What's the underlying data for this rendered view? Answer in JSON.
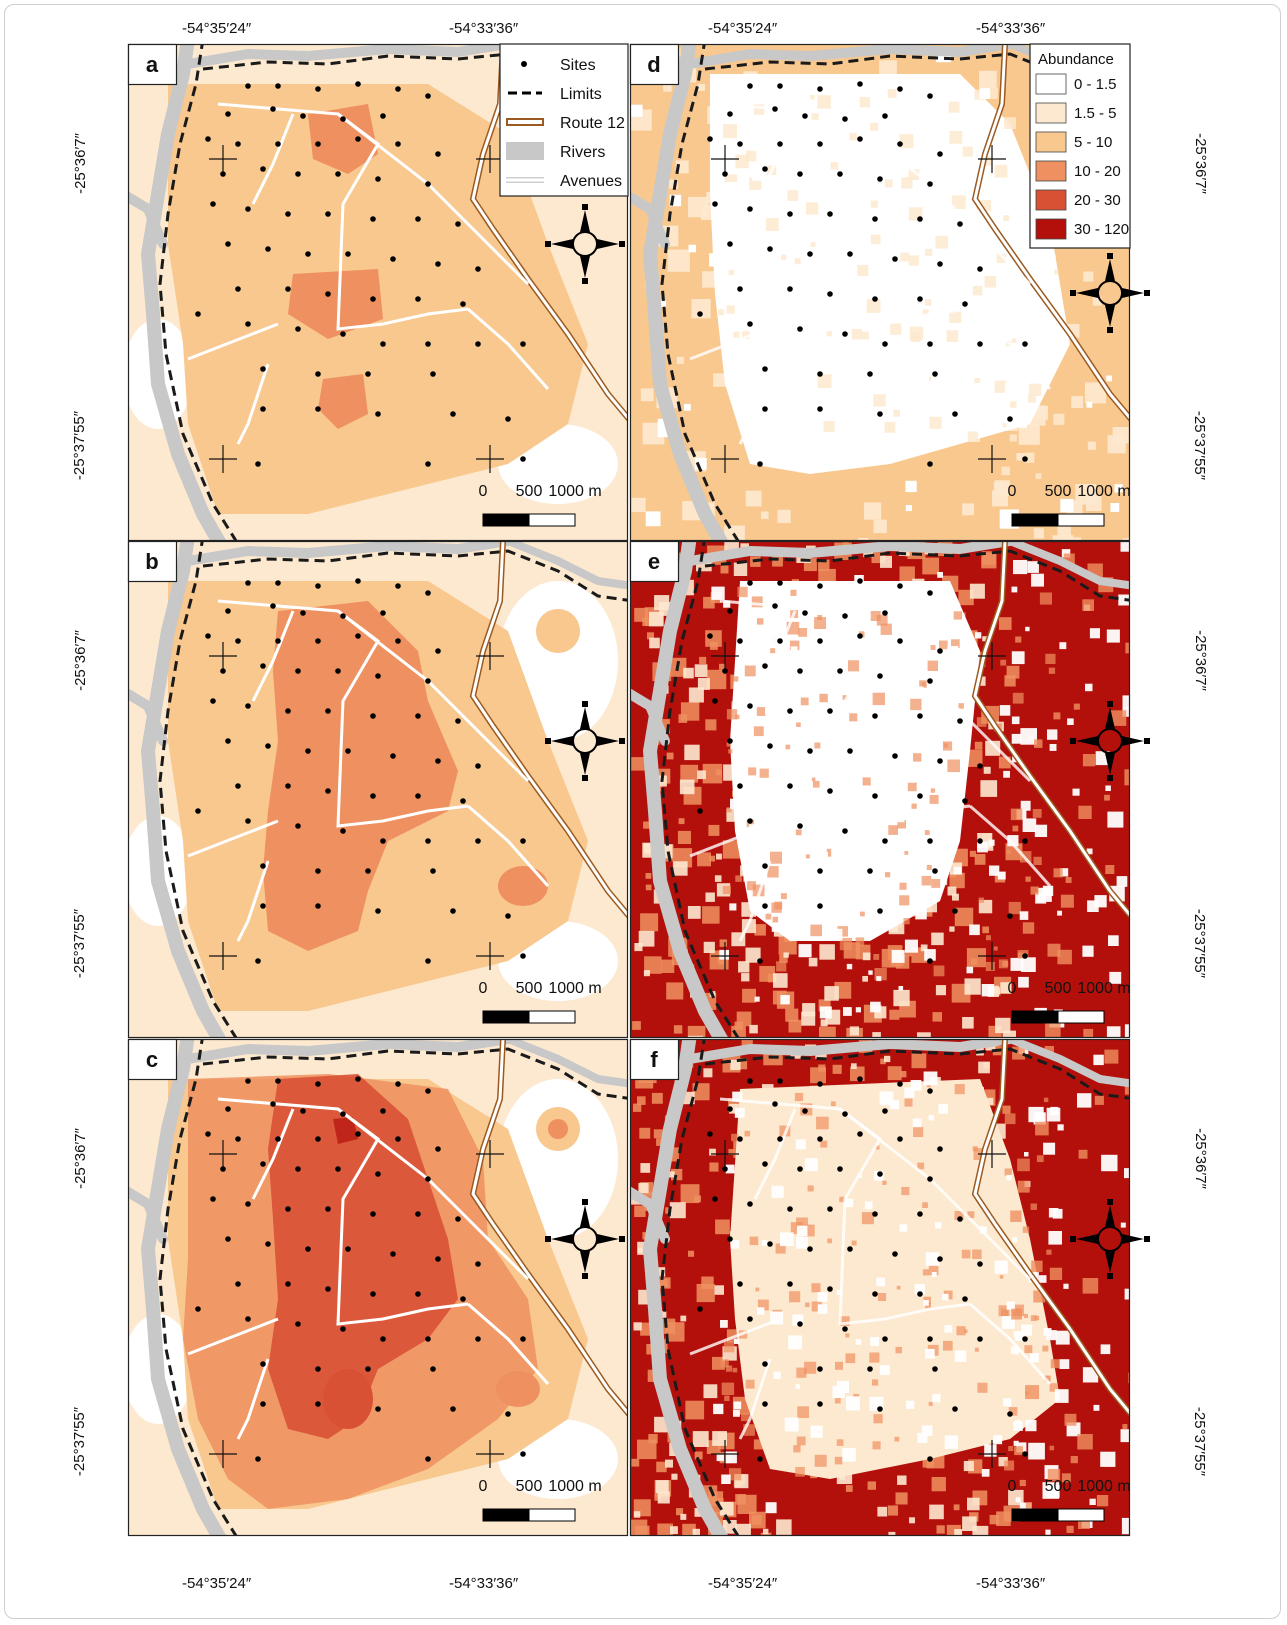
{
  "panels": [
    {
      "label": "a",
      "scheme": "a"
    },
    {
      "label": "b",
      "scheme": "b"
    },
    {
      "label": "c",
      "scheme": "c"
    },
    {
      "label": "d",
      "scheme": "d"
    },
    {
      "label": "e",
      "scheme": "e"
    },
    {
      "label": "f",
      "scheme": "f"
    }
  ],
  "coordinates": {
    "lon_left": "-54°35′24″",
    "lon_right": "-54°33′36″",
    "lat_top": "-25°36′7″",
    "lat_bottom": "-25°37′55″"
  },
  "map_legend": {
    "items": [
      {
        "key": "sites",
        "label": "Sites"
      },
      {
        "key": "limits",
        "label": "Limits"
      },
      {
        "key": "route",
        "label": "Route 12"
      },
      {
        "key": "rivers",
        "label": "Rivers"
      },
      {
        "key": "avenues",
        "label": "Avenues"
      }
    ]
  },
  "abundance_legend": {
    "title": "Abundance",
    "classes": [
      {
        "label": "0 - 1.5",
        "color": "#ffffff"
      },
      {
        "label": "1.5 - 5",
        "color": "#fde9cf"
      },
      {
        "label": "5 - 10",
        "color": "#f8c88f"
      },
      {
        "label": "10 - 20",
        "color": "#ef9060"
      },
      {
        "label": "20 - 30",
        "color": "#d95135"
      },
      {
        "label": "30 - 120",
        "color": "#b3100c"
      }
    ]
  },
  "scale_bar": {
    "labels": [
      "0",
      "500",
      "1000 m"
    ]
  },
  "colors": {
    "river": "#c8c8c8",
    "route": "#9a5a22",
    "limits": "#1a1a1a",
    "avenue": "#ffffff",
    "site": "#000000"
  },
  "north_arrow_icon": "compass-rose-icon"
}
